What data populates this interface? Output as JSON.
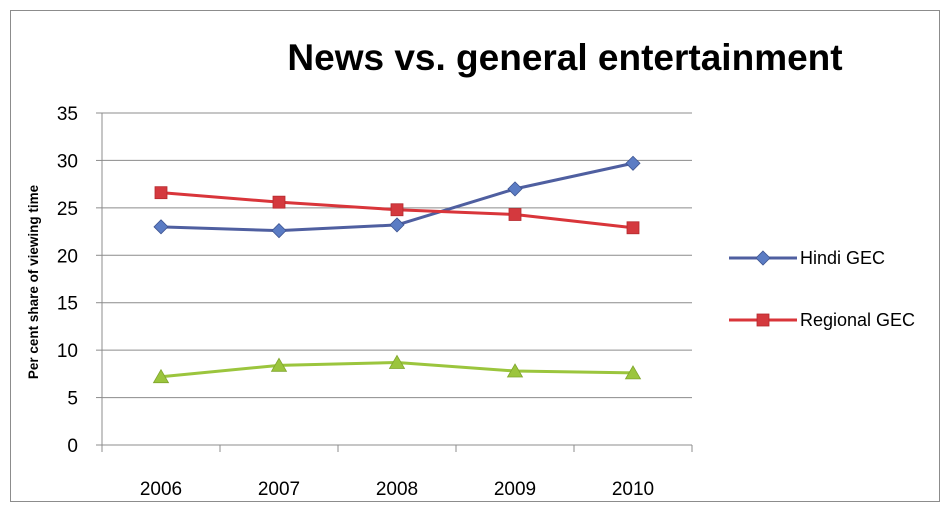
{
  "chart_data": {
    "type": "line",
    "title": "News vs. general entertainment",
    "xlabel": "",
    "ylabel": "Per cent share of viewing time",
    "categories": [
      "2006",
      "2007",
      "2008",
      "2009",
      "2010"
    ],
    "ylim": [
      0,
      35
    ],
    "yticks": [
      0,
      5,
      10,
      15,
      20,
      25,
      30,
      35
    ],
    "grid": true,
    "legend_position": "right",
    "series": [
      {
        "name": "Hindi GEC",
        "values": [
          23.0,
          22.6,
          23.2,
          27.0,
          29.7
        ],
        "color": "#4f5fa0",
        "marker": "diamond",
        "marker_color": "#5b7cc4"
      },
      {
        "name": "Regional GEC",
        "values": [
          26.6,
          25.6,
          24.8,
          24.3,
          22.9
        ],
        "color": "#d9353a",
        "marker": "square",
        "marker_color": "#d4393e"
      },
      {
        "name": "",
        "values": [
          7.2,
          8.4,
          8.7,
          7.8,
          7.6
        ],
        "color": "#9bc53d",
        "marker": "triangle",
        "marker_color": "#9bc53d"
      }
    ]
  }
}
